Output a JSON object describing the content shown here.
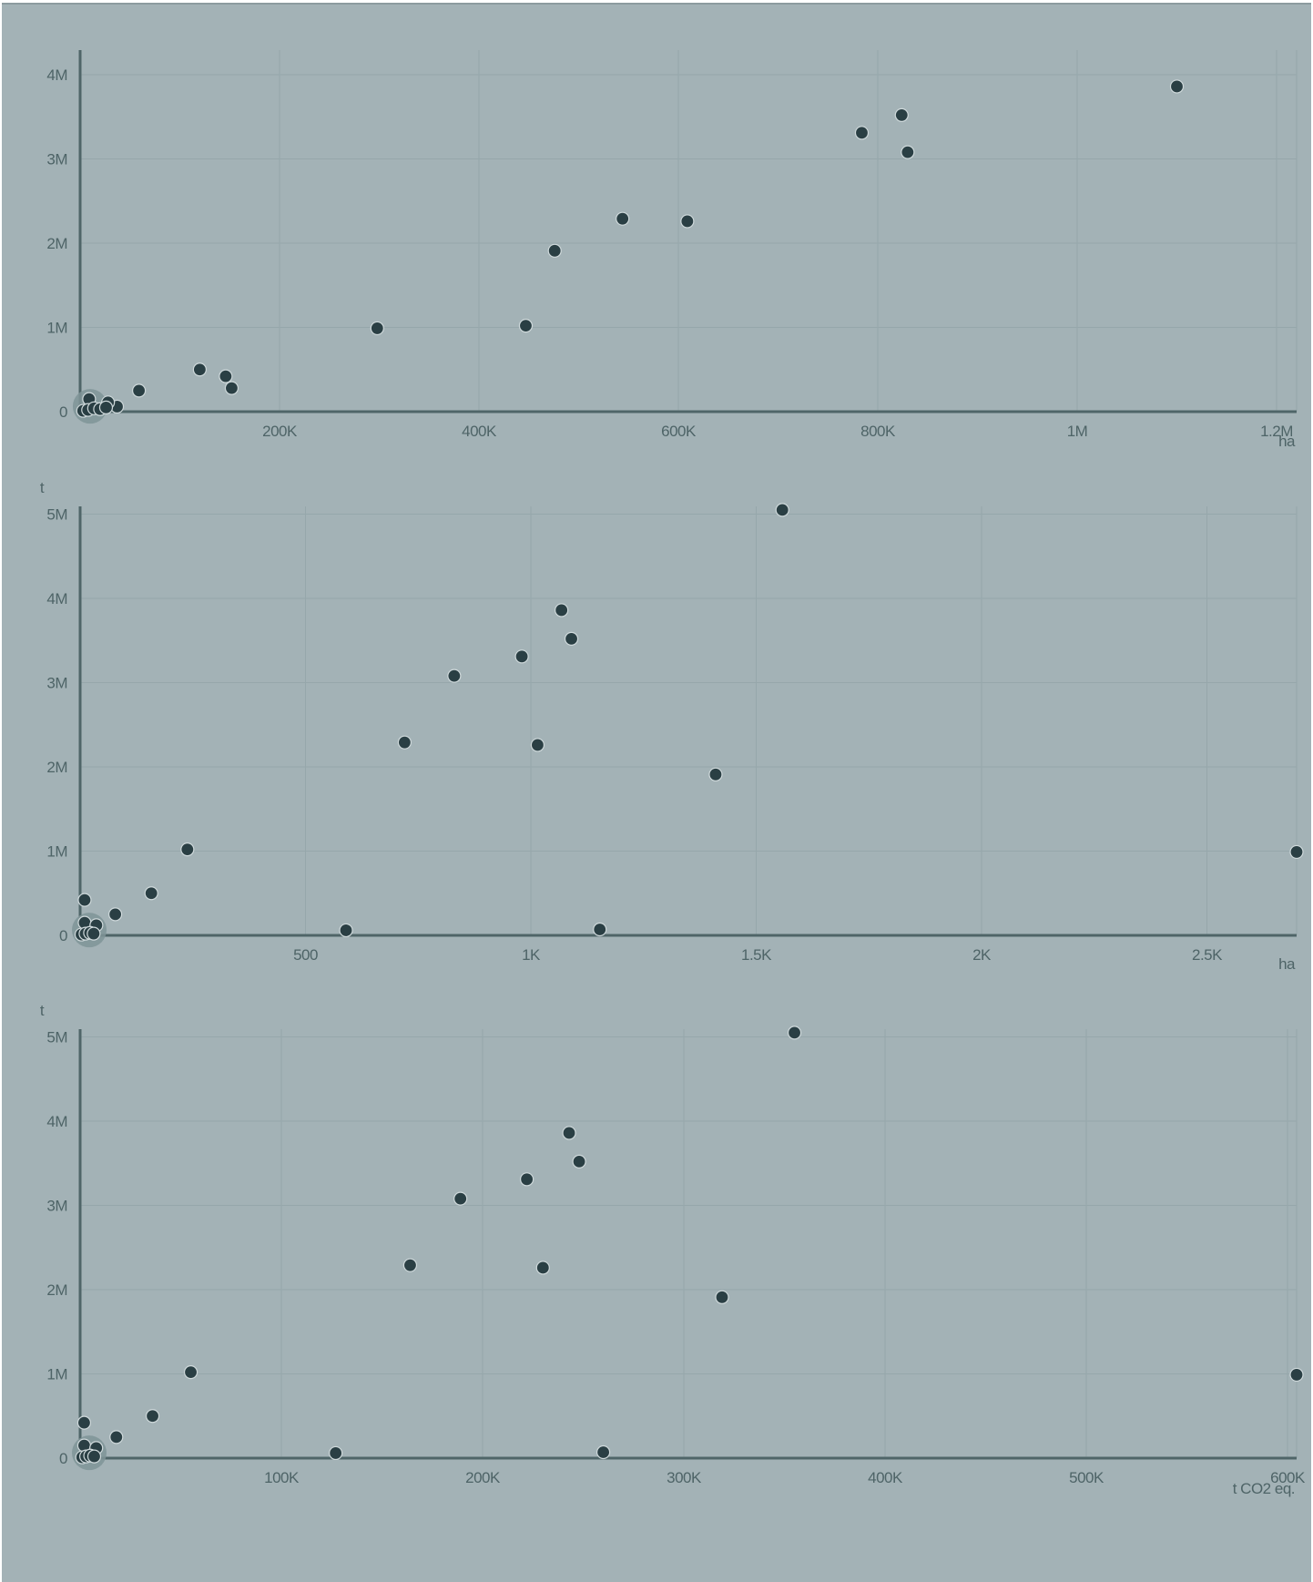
{
  "colors": {
    "background": "#a3b2b6",
    "point": "#2a3f44",
    "axis": "#4f6568",
    "grid": "#96a7ab",
    "label": "#4e6467",
    "cluster": "#7f9498"
  },
  "chart_data": [
    {
      "type": "scatter",
      "title": "",
      "xlabel": "ha",
      "ylabel": "",
      "xlim": [
        0,
        1220000
      ],
      "ylim": [
        0,
        4000000
      ],
      "grid": true,
      "x_ticks": [
        {
          "value": 200000,
          "label": "200K"
        },
        {
          "value": 400000,
          "label": "400K"
        },
        {
          "value": 600000,
          "label": "600K"
        },
        {
          "value": 800000,
          "label": "800K"
        },
        {
          "value": 1000000,
          "label": "1M"
        },
        {
          "value": 1200000,
          "label": "1.2M"
        }
      ],
      "y_ticks": [
        {
          "value": 0,
          "label": "0"
        },
        {
          "value": 1000000,
          "label": "1M"
        },
        {
          "value": 2000000,
          "label": "2M"
        },
        {
          "value": 3000000,
          "label": "3M"
        },
        {
          "value": 4000000,
          "label": "4M"
        }
      ],
      "points": [
        [
          1100000,
          3860000
        ],
        [
          824000,
          3520000
        ],
        [
          784000,
          3310000
        ],
        [
          830000,
          3080000
        ],
        [
          544000,
          2290000
        ],
        [
          609000,
          2260000
        ],
        [
          476000,
          1910000
        ],
        [
          447000,
          1020000
        ],
        [
          298000,
          990000
        ],
        [
          120000,
          500000
        ],
        [
          146000,
          420000
        ],
        [
          152000,
          280000
        ],
        [
          59000,
          250000
        ],
        [
          37000,
          60000
        ],
        [
          28000,
          110000
        ],
        [
          9000,
          150000
        ],
        [
          3000,
          10000
        ],
        [
          8000,
          20000
        ],
        [
          14000,
          40000
        ],
        [
          20000,
          30000
        ],
        [
          26000,
          50000
        ]
      ],
      "cluster_at": [
        10000,
        20000
      ]
    },
    {
      "type": "scatter",
      "title": "",
      "xlabel": "ha",
      "ylabel": "t",
      "xlim": [
        0,
        2700
      ],
      "ylim": [
        0,
        5000000
      ],
      "grid": true,
      "x_ticks": [
        {
          "value": 500,
          "label": "500"
        },
        {
          "value": 1000,
          "label": "1K"
        },
        {
          "value": 1500,
          "label": "1.5K"
        },
        {
          "value": 2000,
          "label": "2K"
        },
        {
          "value": 2500,
          "label": "2.5K"
        }
      ],
      "y_ticks": [
        {
          "value": 0,
          "label": "0"
        },
        {
          "value": 1000000,
          "label": "1M"
        },
        {
          "value": 2000000,
          "label": "2M"
        },
        {
          "value": 3000000,
          "label": "3M"
        },
        {
          "value": 4000000,
          "label": "4M"
        },
        {
          "value": 5000000,
          "label": "5M"
        }
      ],
      "points": [
        [
          1558,
          5050000
        ],
        [
          1068,
          3860000
        ],
        [
          1090,
          3520000
        ],
        [
          980,
          3310000
        ],
        [
          830,
          3080000
        ],
        [
          720,
          2290000
        ],
        [
          1015,
          2260000
        ],
        [
          1410,
          1910000
        ],
        [
          2703,
          990000
        ],
        [
          238,
          1020000
        ],
        [
          158,
          500000
        ],
        [
          78,
          250000
        ],
        [
          10,
          420000
        ],
        [
          10,
          150000
        ],
        [
          36,
          120000
        ],
        [
          590,
          60000
        ],
        [
          1153,
          70000
        ],
        [
          3,
          10000
        ],
        [
          12,
          20000
        ],
        [
          22,
          30000
        ],
        [
          30,
          20000
        ]
      ],
      "cluster_at": [
        10,
        20000
      ]
    },
    {
      "type": "scatter",
      "title": "",
      "xlabel": "t CO2 eq.",
      "ylabel": "t",
      "xlim": [
        0,
        600000
      ],
      "ylim": [
        0,
        5000000
      ],
      "grid": true,
      "x_ticks": [
        {
          "value": 100000,
          "label": "100K"
        },
        {
          "value": 200000,
          "label": "200K"
        },
        {
          "value": 300000,
          "label": "300K"
        },
        {
          "value": 400000,
          "label": "400K"
        },
        {
          "value": 500000,
          "label": "500K"
        },
        {
          "value": 600000,
          "label": "600K"
        }
      ],
      "y_ticks": [
        {
          "value": 0,
          "label": "0"
        },
        {
          "value": 1000000,
          "label": "1M"
        },
        {
          "value": 2000000,
          "label": "2M"
        },
        {
          "value": 3000000,
          "label": "3M"
        },
        {
          "value": 4000000,
          "label": "4M"
        },
        {
          "value": 5000000,
          "label": "5M"
        }
      ],
      "points": [
        [
          355000,
          5050000
        ],
        [
          243000,
          3860000
        ],
        [
          248000,
          3520000
        ],
        [
          222000,
          3310000
        ],
        [
          189000,
          3080000
        ],
        [
          164000,
          2290000
        ],
        [
          230000,
          2260000
        ],
        [
          319000,
          1910000
        ],
        [
          605000,
          990000
        ],
        [
          55000,
          1020000
        ],
        [
          36000,
          500000
        ],
        [
          18000,
          250000
        ],
        [
          2000,
          420000
        ],
        [
          2000,
          150000
        ],
        [
          8000,
          120000
        ],
        [
          127000,
          60000
        ],
        [
          260000,
          70000
        ],
        [
          1000,
          10000
        ],
        [
          3000,
          20000
        ],
        [
          5000,
          30000
        ],
        [
          7000,
          20000
        ]
      ],
      "cluster_at": [
        2500,
        20000
      ]
    }
  ]
}
